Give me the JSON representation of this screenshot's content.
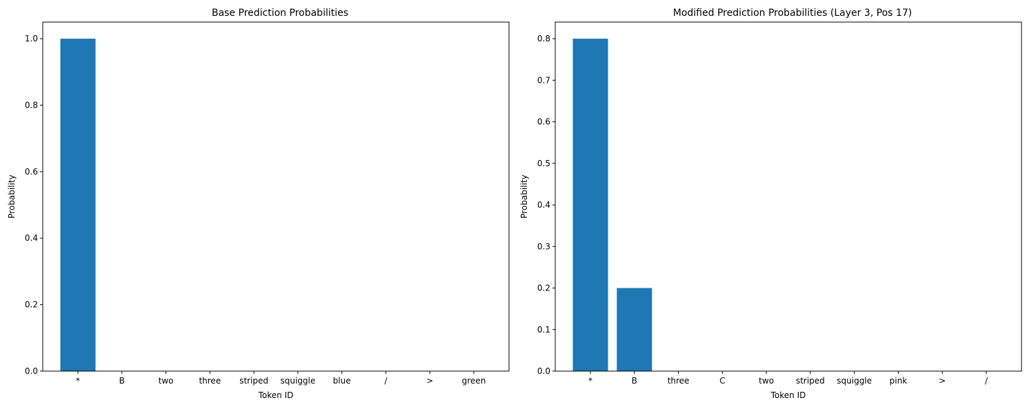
{
  "chart_data": [
    {
      "type": "bar",
      "title": "Base Prediction Probabilities",
      "xlabel": "Token ID",
      "ylabel": "Probability",
      "categories": [
        "*",
        "B",
        "two",
        "three",
        "striped",
        "squiggle",
        "blue",
        "/",
        ">",
        "green"
      ],
      "values": [
        1.0,
        0,
        0,
        0,
        0,
        0,
        0,
        0,
        0,
        0
      ],
      "ylim": [
        0,
        1.05
      ],
      "yticks": [
        0.0,
        0.2,
        0.4,
        0.6,
        0.8,
        1.0
      ],
      "ytick_labels": [
        "0.0",
        "0.2",
        "0.4",
        "0.6",
        "0.8",
        "1.0"
      ],
      "bar_color": "#1f77b4",
      "grid": false,
      "legend": "none"
    },
    {
      "type": "bar",
      "title": "Modified Prediction Probabilities (Layer 3, Pos 17)",
      "xlabel": "Token ID",
      "ylabel": "Probability",
      "categories": [
        "*",
        "B",
        "three",
        "C",
        "two",
        "striped",
        "squiggle",
        "pink",
        ">",
        "/"
      ],
      "values": [
        0.8,
        0.2,
        0,
        0,
        0,
        0,
        0,
        0,
        0,
        0
      ],
      "ylim": [
        0,
        0.84
      ],
      "yticks": [
        0.0,
        0.1,
        0.2,
        0.3,
        0.4,
        0.5,
        0.6,
        0.7,
        0.8
      ],
      "ytick_labels": [
        "0.0",
        "0.1",
        "0.2",
        "0.3",
        "0.4",
        "0.5",
        "0.6",
        "0.7",
        "0.8"
      ],
      "bar_color": "#1f77b4",
      "grid": false,
      "legend": "none"
    }
  ]
}
